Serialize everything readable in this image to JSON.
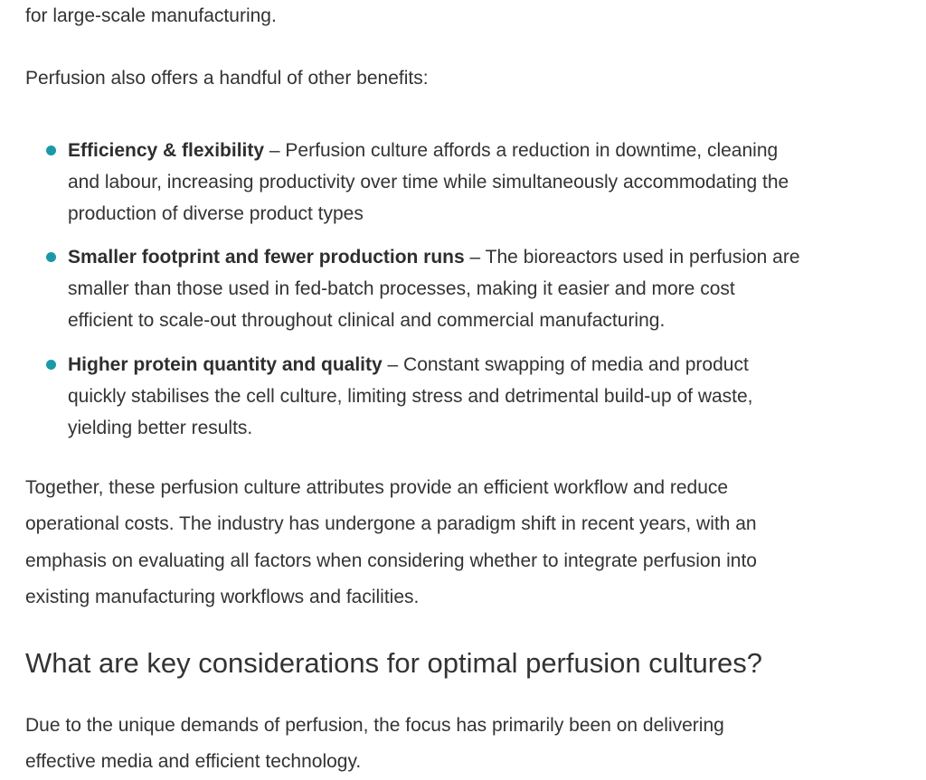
{
  "intro_tail": "for large-scale manufacturing.",
  "benefits_intro": "Perfusion also offers a handful of other benefits:",
  "benefits": [
    {
      "title": "Efficiency & flexibility",
      "lines": [
        " – Perfusion culture affords a reduction in downtime, cleaning",
        "and labour, increasing productivity over time while simultaneously accommodating the",
        "production of diverse product types"
      ]
    },
    {
      "title": "Smaller footprint and fewer production runs",
      "lines": [
        " – The bioreactors used in perfusion are",
        "smaller than those used in fed-batch processes, making it easier and more cost",
        "efficient to scale-out throughout clinical and commercial manufacturing."
      ]
    },
    {
      "title": "Higher protein quantity and quality",
      "lines": [
        " – Constant swapping of media and product",
        "quickly stabilises the cell culture, limiting stress and detrimental build-up of waste,",
        "yielding better results."
      ]
    }
  ],
  "summary_lines": [
    "Together, these perfusion culture attributes provide an efficient workflow and reduce",
    "operational costs. The industry has undergone a paradigm shift in recent years, with an",
    "emphasis on evaluating all factors when considering whether to integrate perfusion into",
    "existing manufacturing workflows and facilities."
  ],
  "heading": "What are key considerations for optimal perfusion cultures?",
  "closing_lines": [
    "Due to the unique demands of perfusion, the focus has primarily been on delivering",
    "effective media and efficient technology."
  ],
  "colors": {
    "bullet": "#1a9aa8",
    "text": "#333333"
  }
}
